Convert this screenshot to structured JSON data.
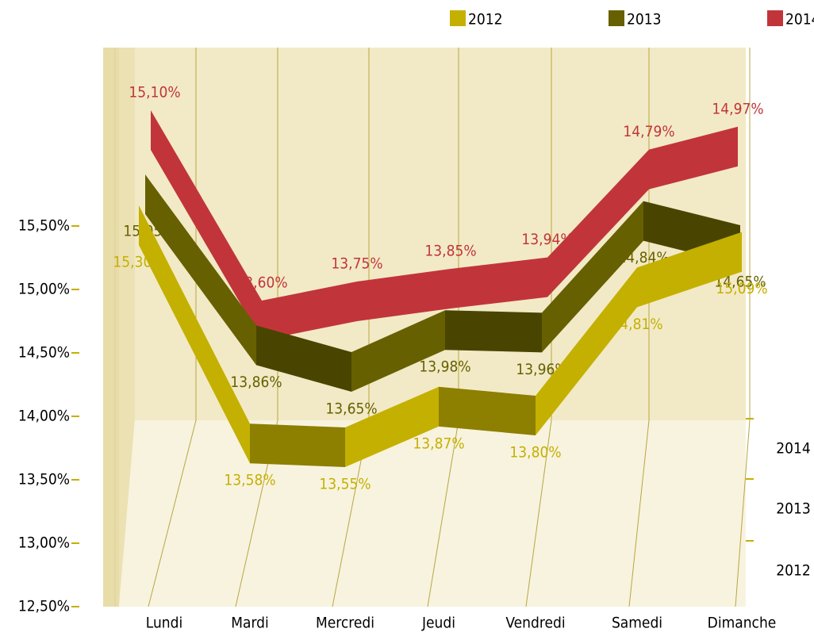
{
  "chart_data": {
    "type": "line",
    "categories": [
      "Lundi",
      "Mardi",
      "Mercredi",
      "Jeudi",
      "Vendredi",
      "Samedi",
      "Dimanche"
    ],
    "series": [
      {
        "name": "2012",
        "color": "#c4b000",
        "values": [
          15.3,
          13.58,
          13.55,
          13.87,
          13.8,
          14.81,
          15.09
        ],
        "value_labels": [
          "15,30%",
          "13,58%",
          "13,55%",
          "13,87%",
          "13,80%",
          "14,81%",
          "15,09%"
        ]
      },
      {
        "name": "2013",
        "color": "#666000",
        "values": [
          15.05,
          13.86,
          13.65,
          13.98,
          13.96,
          14.84,
          14.65
        ],
        "value_labels": [
          "15,05%",
          "13,86%",
          "13,65%",
          "13,98%",
          "13,96%",
          "14,84%",
          "14,65%"
        ]
      },
      {
        "name": "2014",
        "color": "#c1353a",
        "values": [
          15.1,
          13.6,
          13.75,
          13.85,
          13.94,
          14.79,
          14.97
        ],
        "value_labels": [
          "15,10%",
          "13,60%",
          "13,75%",
          "13,85%",
          "13,94%",
          "14,79%",
          "14,97%"
        ]
      }
    ],
    "ylim": [
      12.5,
      15.5
    ],
    "yticks": [
      {
        "value": 12.5,
        "label": "12,50%"
      },
      {
        "value": 13,
        "label": "13,00%"
      },
      {
        "value": 13.5,
        "label": "13,50%"
      },
      {
        "value": 14,
        "label": "14,00%"
      },
      {
        "value": 14.5,
        "label": "14,50%"
      },
      {
        "value": 15,
        "label": "15,00%"
      },
      {
        "value": 15.5,
        "label": "15,50%"
      }
    ],
    "legend": "top-right"
  }
}
